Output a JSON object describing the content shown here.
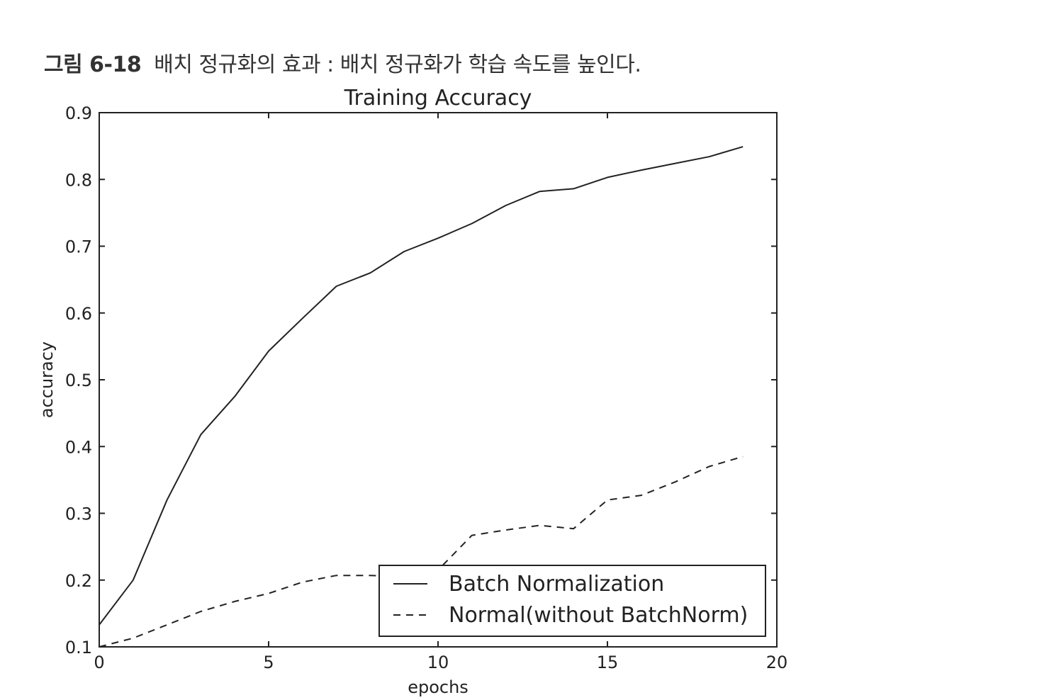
{
  "caption": {
    "label": "그림 6-18",
    "text": "배치 정규화의 효과 : 배치 정규화가 학습 속도를 높인다."
  },
  "chart_data": {
    "type": "line",
    "title": "Training Accuracy",
    "xlabel": "epochs",
    "ylabel": "accuracy",
    "xlim": [
      0,
      20
    ],
    "ylim": [
      0.1,
      0.9
    ],
    "xticks": [
      "0",
      "5",
      "10",
      "15",
      "20"
    ],
    "yticks": [
      "0.1",
      "0.2",
      "0.3",
      "0.4",
      "0.5",
      "0.6",
      "0.7",
      "0.8",
      "0.9"
    ],
    "grid": false,
    "legend_position": "lower-right",
    "x": [
      0,
      1,
      2,
      3,
      4,
      5,
      6,
      7,
      8,
      9,
      10,
      11,
      12,
      13,
      14,
      15,
      16,
      17,
      18,
      19
    ],
    "series": [
      {
        "name": "Batch Normalization",
        "style": "solid",
        "color": "#222222",
        "values": [
          0.133,
          0.2,
          0.32,
          0.418,
          0.475,
          0.543,
          0.592,
          0.64,
          0.66,
          0.692,
          0.712,
          0.734,
          0.761,
          0.782,
          0.786,
          0.803,
          0.814,
          0.824,
          0.834,
          0.849
        ]
      },
      {
        "name": "Normal(without BatchNorm)",
        "style": "dashed",
        "color": "#222222",
        "values": [
          0.1,
          0.113,
          0.133,
          0.153,
          0.168,
          0.18,
          0.197,
          0.207,
          0.207,
          0.205,
          0.215,
          0.267,
          0.275,
          0.282,
          0.277,
          0.32,
          0.327,
          0.347,
          0.37,
          0.385
        ]
      }
    ]
  }
}
